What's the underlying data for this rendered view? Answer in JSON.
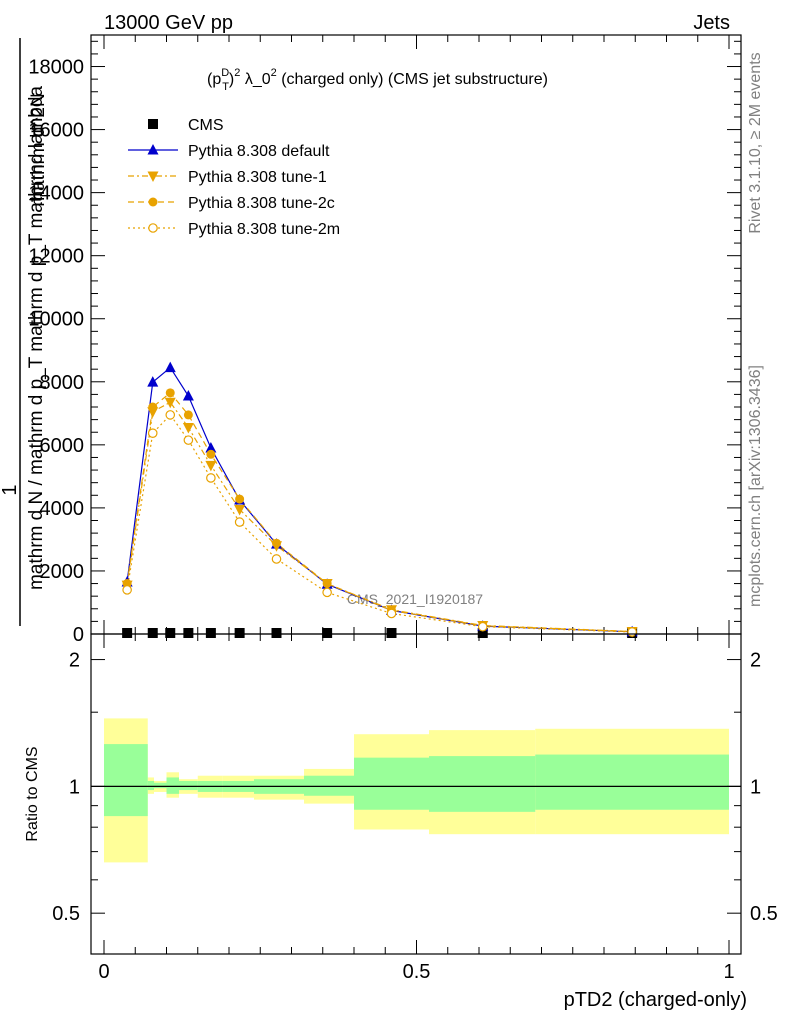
{
  "header": {
    "left": "13000 GeV pp",
    "right": "Jets"
  },
  "side_labels": {
    "rivet": "Rivet 3.1.10, ≥ 2M events",
    "mcplots": "mcplots.cern.ch [arXiv:1306.3436]"
  },
  "chart_data": {
    "type": "line",
    "title": "(p_T^D)^2 λ_0^2 (charged only) (CMS jet substructure)",
    "title_parts": {
      "pre": "(p",
      "sup1": "D",
      "sub1": "T",
      "mid": ")",
      "sup2": "2",
      "post": " λ_0",
      "sup3": "2",
      "tail": " (charged only) (CMS jet substructure)"
    },
    "watermark": "CMS_2021_I1920187",
    "xlabel": "pTD2 (charged-only)",
    "ylabel_top": "1",
    "ylabel_bottom": "mathrm d N / mathrm d p_T mathrm d p_T mathrmd lambda",
    "ylabel_numer": "mathrm d^2N",
    "xlim": [
      0,
      1
    ],
    "ylim": [
      0,
      19000
    ],
    "yticks": [
      0,
      2000,
      4000,
      6000,
      8000,
      10000,
      12000,
      14000,
      16000,
      18000
    ],
    "ytick_labels": [
      "0",
      "2000",
      "4000",
      "6000",
      "8000",
      "10000",
      "12000",
      "14000",
      "16000",
      "18000"
    ],
    "xticks": [
      0,
      0.5,
      1
    ],
    "xtick_labels": [
      "0",
      "0.5",
      "1"
    ],
    "ratio": {
      "ylabel": "Ratio to CMS",
      "ylim": [
        0.4,
        2.3
      ],
      "yticks": [
        0.5,
        1,
        2
      ],
      "ytick_labels": [
        "0.5",
        "1",
        "2"
      ],
      "bins": [
        0,
        0.07,
        0.08,
        0.1,
        0.12,
        0.15,
        0.19,
        0.24,
        0.32,
        0.4,
        0.52,
        0.69,
        1.0
      ],
      "inner_band": [
        [
          0.85,
          1.26
        ],
        [
          0.98,
          1.03
        ],
        [
          0.99,
          1.02
        ],
        [
          0.96,
          1.05
        ],
        [
          0.98,
          1.03
        ],
        [
          0.97,
          1.03
        ],
        [
          0.97,
          1.03
        ],
        [
          0.96,
          1.04
        ],
        [
          0.95,
          1.06
        ],
        [
          0.88,
          1.17
        ],
        [
          0.87,
          1.18
        ],
        [
          0.88,
          1.19
        ]
      ],
      "outer_band": [
        [
          0.66,
          1.45
        ],
        [
          0.96,
          1.05
        ],
        [
          0.97,
          1.03
        ],
        [
          0.94,
          1.08
        ],
        [
          0.96,
          1.04
        ],
        [
          0.94,
          1.06
        ],
        [
          0.94,
          1.06
        ],
        [
          0.93,
          1.06
        ],
        [
          0.91,
          1.1
        ],
        [
          0.79,
          1.33
        ],
        [
          0.77,
          1.36
        ],
        [
          0.77,
          1.37
        ]
      ]
    },
    "series": [
      {
        "name": "CMS",
        "color": "#000000",
        "marker": "square",
        "line": "none",
        "x": [
          0.037,
          0.078,
          0.106,
          0.135,
          0.171,
          0.217,
          0.276,
          0.357,
          0.46,
          0.606,
          0.845
        ],
        "y": [
          0,
          0,
          0,
          0,
          0,
          0,
          0,
          0,
          0,
          0,
          0
        ]
      },
      {
        "name": "Pythia 8.308 default",
        "color": "#0000cc",
        "marker": "triangle-up",
        "line": "solid",
        "x": [
          0.037,
          0.078,
          0.106,
          0.135,
          0.171,
          0.217,
          0.276,
          0.357,
          0.46,
          0.606,
          0.845
        ],
        "y": [
          1650,
          7990,
          8450,
          7550,
          5900,
          4250,
          2850,
          1580,
          750,
          250,
          70
        ]
      },
      {
        "name": "Pythia 8.308 tune-1",
        "color": "#e8a200",
        "marker": "triangle-down",
        "line": "dashdot",
        "x": [
          0.037,
          0.078,
          0.106,
          0.135,
          0.171,
          0.217,
          0.276,
          0.357,
          0.46,
          0.606,
          0.845
        ],
        "y": [
          1550,
          7050,
          7350,
          6550,
          5350,
          3950,
          2800,
          1600,
          770,
          270,
          80
        ]
      },
      {
        "name": "Pythia 8.308 tune-2c",
        "color": "#e8a200",
        "marker": "circle",
        "line": "dashed",
        "x": [
          0.037,
          0.078,
          0.106,
          0.135,
          0.171,
          0.217,
          0.276,
          0.357,
          0.46,
          0.606,
          0.845
        ],
        "y": [
          1600,
          7200,
          7650,
          6950,
          5700,
          4280,
          2880,
          1600,
          750,
          260,
          75
        ]
      },
      {
        "name": "Pythia 8.308 tune-2m",
        "color": "#e8a200",
        "marker": "circle-open",
        "line": "dotted",
        "x": [
          0.037,
          0.078,
          0.106,
          0.135,
          0.171,
          0.217,
          0.276,
          0.357,
          0.46,
          0.606,
          0.845
        ],
        "y": [
          1400,
          6370,
          6950,
          6150,
          4950,
          3550,
          2380,
          1320,
          650,
          230,
          65
        ]
      }
    ],
    "colors": {
      "inner_band": "#99ff99",
      "outer_band": "#ffff99"
    }
  }
}
